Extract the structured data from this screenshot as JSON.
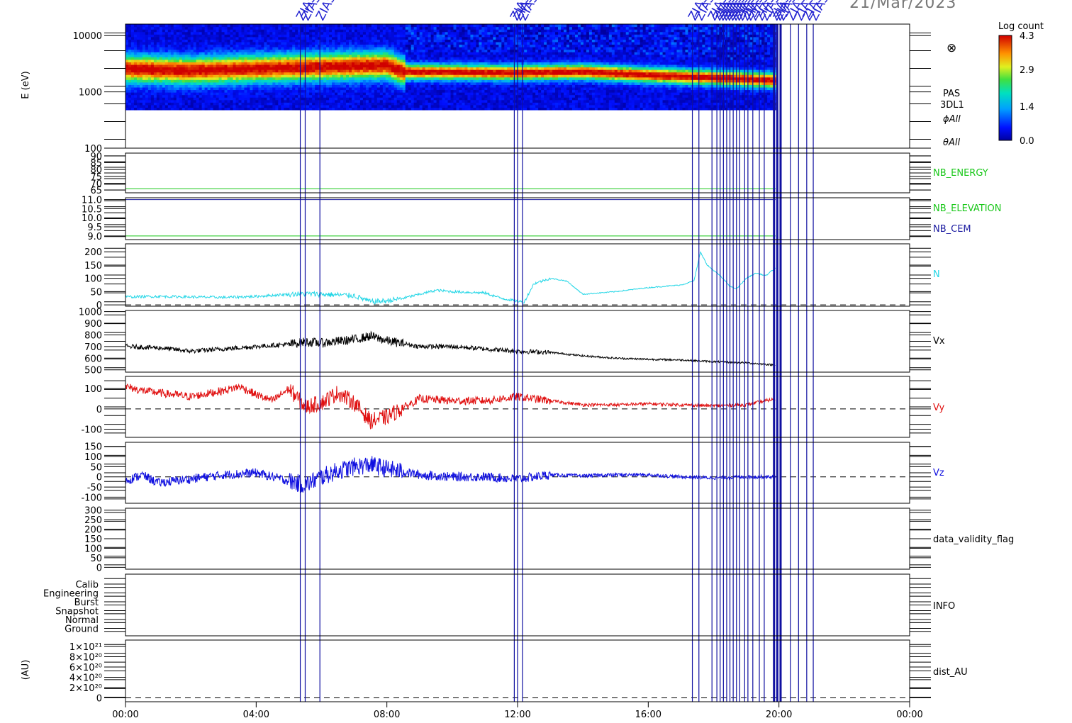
{
  "header": {
    "date": "21/Mar/2023",
    "marker_label": "ZIAS"
  },
  "colorbar": {
    "title": "Log count",
    "ticks": [
      "4.3",
      "2.9",
      "1.4",
      "0.0"
    ],
    "range": [
      0.0,
      4.3
    ]
  },
  "spectrogram_side": {
    "symbol": "⊗",
    "labels": [
      "PAS",
      "3DL1",
      "ϕAll",
      "θAll"
    ]
  },
  "x_axis": {
    "ticks": [
      "00:00",
      "04:00",
      "08:00",
      "12:00",
      "16:00",
      "20:00",
      "00:00"
    ],
    "hours": [
      0,
      4,
      8,
      12,
      16,
      20,
      24
    ]
  },
  "colors": {
    "frame": "#000000",
    "markers": "#1010a0",
    "nb_energy": "#19c719",
    "nb_elevation": "#19c719",
    "nb_cem": "#1a1aa0",
    "n": "#22d6e6",
    "vx": "#000000",
    "vy": "#e01010",
    "vz": "#1010e0"
  },
  "event_markers_hours": [
    5.35,
    5.5,
    5.95,
    11.9,
    12.0,
    12.15,
    17.35,
    17.55,
    17.95,
    18.1,
    18.2,
    18.3,
    18.4,
    18.5,
    18.6,
    18.7,
    18.8,
    18.95,
    19.05,
    19.2,
    19.4,
    19.55,
    19.85,
    19.95,
    20.05,
    20.35,
    20.6,
    20.85,
    21.05
  ],
  "chart_data": [
    {
      "type": "heatmap",
      "panel": "PAS 3DL1 spectrogram",
      "ylabel": "E (eV)",
      "yscale": "log",
      "ylim": [
        100,
        16000
      ],
      "yticks": [
        "10000",
        "1000",
        "100"
      ],
      "time_range_hours": [
        0,
        19.9
      ],
      "lower_energy_cutoff_eV": 480,
      "peak_energy_eV": [
        [
          0,
          2600
        ],
        [
          2,
          2400
        ],
        [
          4,
          2600
        ],
        [
          6,
          2800
        ],
        [
          8,
          3000
        ],
        [
          8.5,
          2300
        ],
        [
          12,
          2200
        ],
        [
          14,
          2300
        ],
        [
          16,
          2000
        ],
        [
          18,
          1800
        ],
        [
          19.9,
          1600
        ]
      ]
    },
    {
      "type": "line",
      "panel": "NB_ENERGY",
      "ylim": [
        63,
        92
      ],
      "yticks": [
        "90",
        "85",
        "80",
        "75",
        "70",
        "65"
      ],
      "series": [
        {
          "name": "NB_ENERGY",
          "x": [
            0,
            19.9
          ],
          "y": [
            66,
            66
          ]
        }
      ]
    },
    {
      "type": "line",
      "panel": "NB_ELEVATION / NB_CEM",
      "ylim": [
        8.8,
        11.1
      ],
      "yticks": [
        "11.0",
        "10.5",
        "10.0",
        "9.5",
        "9.0"
      ],
      "series": [
        {
          "name": "NB_ELEVATION",
          "x": [
            0,
            19.9
          ],
          "y": [
            9.0,
            9.0
          ]
        },
        {
          "name": "NB_CEM",
          "x": [
            0,
            19.9
          ],
          "y": [
            11.0,
            11.0
          ]
        }
      ]
    },
    {
      "type": "line",
      "panel": "N",
      "ylim": [
        -5,
        230
      ],
      "yticks": [
        "200",
        "150",
        "100",
        "50",
        "0"
      ],
      "series": [
        {
          "name": "N",
          "x": [
            0,
            1,
            2,
            3,
            4,
            5,
            5.5,
            6,
            7,
            7.5,
            8,
            8.5,
            9,
            9.5,
            10,
            11,
            11.5,
            12.2,
            12.5,
            13,
            13.5,
            14,
            15,
            16,
            17,
            17.4,
            17.6,
            17.8,
            18.2,
            18.5,
            18.7,
            19,
            19.3,
            19.6,
            19.9
          ],
          "y": [
            30,
            32,
            30,
            28,
            32,
            40,
            42,
            40,
            35,
            12,
            15,
            25,
            40,
            55,
            50,
            45,
            25,
            10,
            80,
            100,
            90,
            40,
            50,
            65,
            75,
            90,
            200,
            150,
            110,
            70,
            60,
            100,
            120,
            110,
            140
          ]
        }
      ]
    },
    {
      "type": "line",
      "panel": "Vx",
      "ylim": [
        480,
        1010
      ],
      "yticks": [
        "1000",
        "900",
        "800",
        "700",
        "600",
        "500"
      ],
      "series": [
        {
          "name": "Vx",
          "x": [
            0,
            1,
            2,
            3,
            4,
            5,
            5.5,
            6,
            7,
            7.5,
            8,
            9,
            10,
            11,
            12,
            13,
            14,
            15,
            16,
            17,
            18,
            19,
            19.9
          ],
          "y": [
            700,
            690,
            660,
            680,
            700,
            720,
            740,
            730,
            760,
            790,
            750,
            700,
            700,
            680,
            660,
            650,
            620,
            600,
            590,
            585,
            570,
            560,
            540
          ]
        }
      ]
    },
    {
      "type": "line",
      "panel": "Vy",
      "ylim": [
        -140,
        160
      ],
      "yticks": [
        "100",
        "0",
        "-100"
      ],
      "series": [
        {
          "name": "Vy",
          "x": [
            0,
            0.5,
            1,
            2,
            3,
            3.5,
            4,
            4.5,
            5,
            5.5,
            6,
            6.5,
            7,
            7.5,
            8,
            9,
            10,
            11,
            12,
            13,
            14,
            15,
            16,
            17,
            18,
            19,
            19.9
          ],
          "y": [
            110,
            90,
            80,
            60,
            90,
            110,
            70,
            40,
            100,
            10,
            30,
            80,
            30,
            -60,
            -40,
            50,
            40,
            40,
            60,
            40,
            20,
            20,
            25,
            20,
            15,
            20,
            50
          ]
        }
      ]
    },
    {
      "type": "line",
      "panel": "Vz",
      "ylim": [
        -130,
        170
      ],
      "yticks": [
        "150",
        "100",
        "50",
        "0",
        "-50",
        "-100"
      ],
      "series": [
        {
          "name": "Vz",
          "x": [
            0,
            0.5,
            1,
            2,
            3,
            4,
            5,
            5.5,
            6,
            6.5,
            7,
            7.5,
            8,
            9,
            10,
            11,
            12,
            12.5,
            13,
            14,
            15,
            16,
            17,
            18,
            19,
            19.9
          ],
          "y": [
            -20,
            10,
            -30,
            -10,
            10,
            20,
            -20,
            -40,
            0,
            30,
            50,
            60,
            40,
            10,
            0,
            0,
            -10,
            0,
            10,
            5,
            10,
            10,
            0,
            -5,
            0,
            0
          ]
        }
      ]
    },
    {
      "type": "line",
      "panel": "data_validity_flag",
      "ylim": [
        -10,
        310
      ],
      "yticks": [
        "300",
        "250",
        "200",
        "150",
        "100",
        "50",
        "0"
      ],
      "series": []
    },
    {
      "type": "line",
      "panel": "INFO",
      "yticks": [
        "Calib",
        "Engineering",
        "Burst",
        "Snapshot",
        "Normal",
        "Ground"
      ],
      "series": []
    },
    {
      "type": "line",
      "panel": "dist_AU",
      "ylabel": "(AU)",
      "ylim": [
        -4e+19,
        1.08e+21
      ],
      "yticks": [
        "1×10²¹",
        "8×10²⁰",
        "6×10²⁰",
        "4×10²⁰",
        "2×10²⁰",
        "0"
      ],
      "series": []
    }
  ],
  "panel_labels": {
    "nb_energy": "NB_ENERGY",
    "nb_elevation": "NB_ELEVATION",
    "nb_cem": "NB_CEM",
    "n": "N",
    "vx": "Vx",
    "vy": "Vy",
    "vz": "Vz",
    "validity": "data_validity_flag",
    "info": "INFO",
    "dist": "dist_AU"
  }
}
